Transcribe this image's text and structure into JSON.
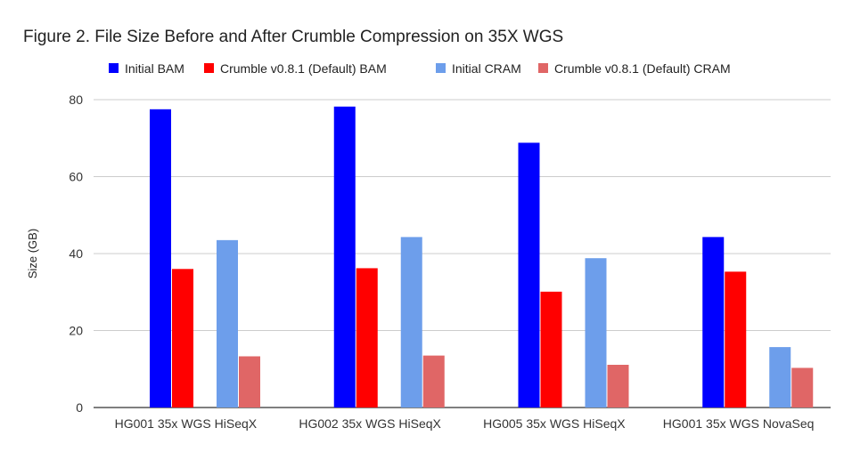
{
  "chart_data": {
    "type": "bar",
    "title": "Figure 2. File Size Before and After Crumble Compression on 35X WGS",
    "xlabel": "",
    "ylabel": "Size (GB)",
    "ylim": [
      0,
      80
    ],
    "yticks": [
      0,
      20,
      40,
      60,
      80
    ],
    "grid": true,
    "legend_position": "top",
    "categories": [
      "HG001 35x WGS HiSeqX",
      "HG002 35x WGS HiSeqX",
      "HG005 35x WGS HiSeqX",
      "HG001 35x WGS NovaSeq"
    ],
    "series": [
      {
        "name": "Initial BAM",
        "color": "#0000ff",
        "values": [
          77.5,
          78.2,
          68.8,
          44.3
        ]
      },
      {
        "name": "Crumble v0.8.1 (Default) BAM",
        "color": "#ff0000",
        "values": [
          36.0,
          36.2,
          30.1,
          35.3
        ]
      },
      {
        "name": "Initial CRAM",
        "color": "#6d9eeb",
        "values": [
          43.5,
          44.3,
          38.8,
          15.7
        ]
      },
      {
        "name": "Crumble v0.8.1 (Default) CRAM",
        "color": "#e06666",
        "values": [
          13.3,
          13.5,
          11.1,
          10.3
        ]
      }
    ]
  }
}
